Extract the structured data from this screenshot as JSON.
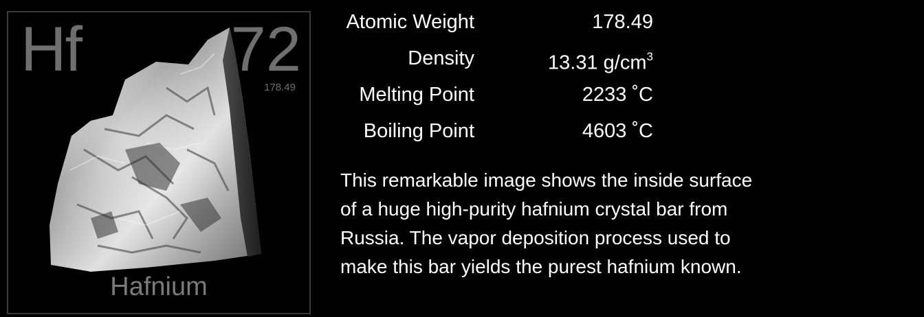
{
  "tile": {
    "symbol": "Hf",
    "atomic_number": "72",
    "atomic_weight": "178.49",
    "name": "Hafnium"
  },
  "properties": [
    {
      "label": "Atomic Weight",
      "value": "178.49",
      "superscript": ""
    },
    {
      "label": "Density",
      "value": "13.31 g/cm",
      "superscript": "3"
    },
    {
      "label": "Melting Point",
      "value": "2233 ˚C",
      "superscript": ""
    },
    {
      "label": "Boiling Point",
      "value": "4603 ˚C",
      "superscript": ""
    }
  ],
  "description": [
    "This remarkable image shows the inside surface",
    "of a huge high-purity hafnium crystal bar from",
    "Russia.  The vapor deposition process used to",
    "make this bar yields the purest hafnium known."
  ],
  "colors": {
    "background": "#000000",
    "tile_text": "#6f6f6f",
    "tile_border": "#3a3a3a",
    "text": "#ffffff",
    "metal_light": "#d9d9d9",
    "metal_dark": "#5a5a5a"
  }
}
